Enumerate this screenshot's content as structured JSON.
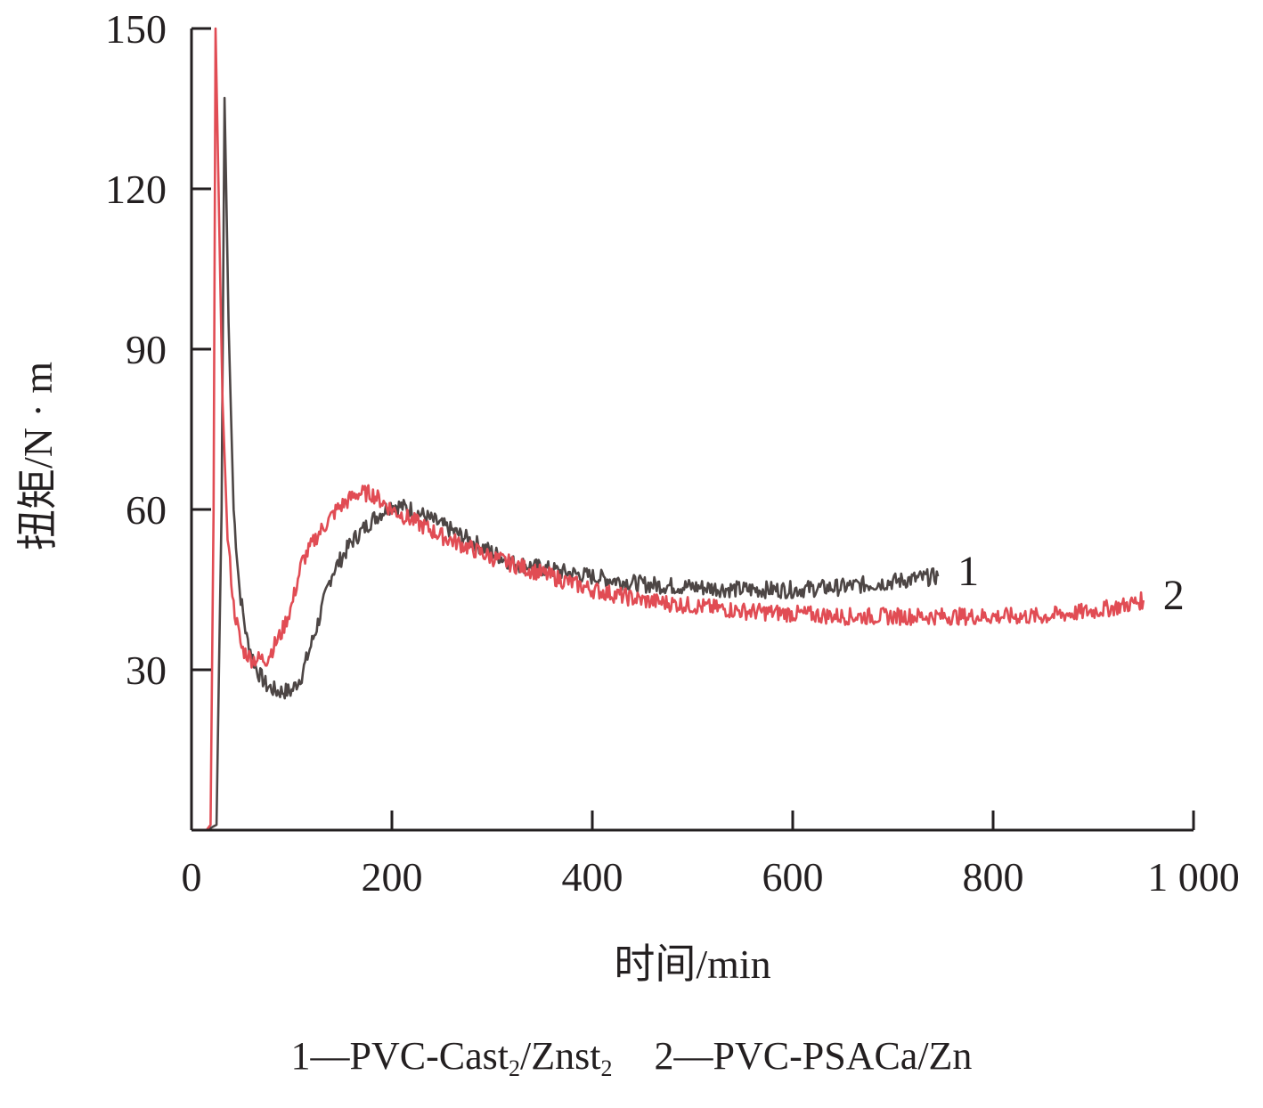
{
  "chart_data": {
    "type": "line",
    "xlabel": "时间/min",
    "ylabel": "扭矩/N · m",
    "xlim": [
      0,
      1000
    ],
    "ylim": [
      0,
      150
    ],
    "x_ticks": [
      0,
      200,
      400,
      600,
      800,
      1000
    ],
    "x_tick_labels": [
      "0",
      "200",
      "400",
      "600",
      "800",
      "1 000"
    ],
    "y_ticks": [
      30,
      60,
      90,
      120,
      150
    ],
    "y_tick_labels": [
      "30",
      "60",
      "90",
      "120",
      "150"
    ],
    "grid": false,
    "series": [
      {
        "name": "1",
        "color": "#4d4645",
        "label_text": "1",
        "points": [
          [
            0,
            0
          ],
          [
            15,
            0
          ],
          [
            25,
            1
          ],
          [
            30,
            60
          ],
          [
            33,
            137
          ],
          [
            37,
            95
          ],
          [
            42,
            60
          ],
          [
            48,
            45
          ],
          [
            55,
            36
          ],
          [
            65,
            30
          ],
          [
            75,
            27
          ],
          [
            85,
            26
          ],
          [
            100,
            26
          ],
          [
            110,
            29
          ],
          [
            125,
            38
          ],
          [
            140,
            48
          ],
          [
            160,
            54
          ],
          [
            180,
            58
          ],
          [
            200,
            61
          ],
          [
            220,
            60
          ],
          [
            250,
            57
          ],
          [
            280,
            54
          ],
          [
            320,
            50
          ],
          [
            380,
            48
          ],
          [
            450,
            46
          ],
          [
            500,
            45.5
          ],
          [
            550,
            45
          ],
          [
            600,
            45
          ],
          [
            650,
            45.5
          ],
          [
            700,
            46.5
          ],
          [
            745,
            47.5
          ]
        ]
      },
      {
        "name": "2",
        "color": "#e14c54",
        "label_text": "2",
        "points": [
          [
            0,
            0
          ],
          [
            15,
            0
          ],
          [
            19,
            1
          ],
          [
            22,
            60
          ],
          [
            24,
            150
          ],
          [
            27,
            120
          ],
          [
            31,
            80
          ],
          [
            36,
            55
          ],
          [
            42,
            42
          ],
          [
            50,
            34
          ],
          [
            60,
            32
          ],
          [
            75,
            32
          ],
          [
            90,
            37
          ],
          [
            100,
            42
          ],
          [
            110,
            50
          ],
          [
            125,
            55
          ],
          [
            145,
            60
          ],
          [
            165,
            63
          ],
          [
            180,
            63
          ],
          [
            200,
            60
          ],
          [
            250,
            55
          ],
          [
            300,
            51
          ],
          [
            350,
            48
          ],
          [
            400,
            45
          ],
          [
            450,
            43
          ],
          [
            500,
            42
          ],
          [
            550,
            41
          ],
          [
            600,
            40.5
          ],
          [
            650,
            40
          ],
          [
            700,
            40
          ],
          [
            750,
            40
          ],
          [
            800,
            40
          ],
          [
            850,
            40
          ],
          [
            900,
            41
          ],
          [
            930,
            42
          ],
          [
            950,
            43
          ]
        ]
      }
    ]
  },
  "legend": {
    "item1_prefix": "1—PVC-Cast",
    "item1_sub1": "2",
    "item1_mid": "/Znst",
    "item1_sub2": "2",
    "item2": "2—PVC-PSACa/Zn"
  }
}
